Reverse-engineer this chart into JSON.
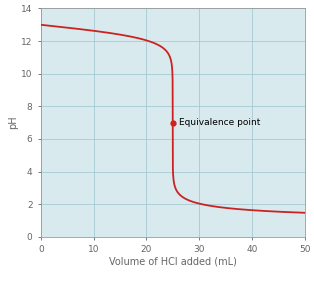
{
  "title": "",
  "xlabel": "Volume of HCl added (mL)",
  "ylabel": "pH",
  "xlim": [
    0,
    50
  ],
  "ylim": [
    0,
    14
  ],
  "xticks": [
    0,
    10,
    20,
    30,
    40,
    50
  ],
  "yticks": [
    0,
    2,
    4,
    6,
    8,
    10,
    12,
    14
  ],
  "equivalence_x": 25,
  "equivalence_y": 7.0,
  "equivalence_label": "Equivalence point",
  "curve_color": "#cc2222",
  "dot_color": "#cc2222",
  "fig_background": "#ffffff",
  "axes_background": "#d8eaee",
  "grid_color": "#9ec4cf",
  "label_color": "#666666",
  "spine_color": "#999999",
  "figsize": [
    3.14,
    2.82
  ],
  "dpi": 100
}
